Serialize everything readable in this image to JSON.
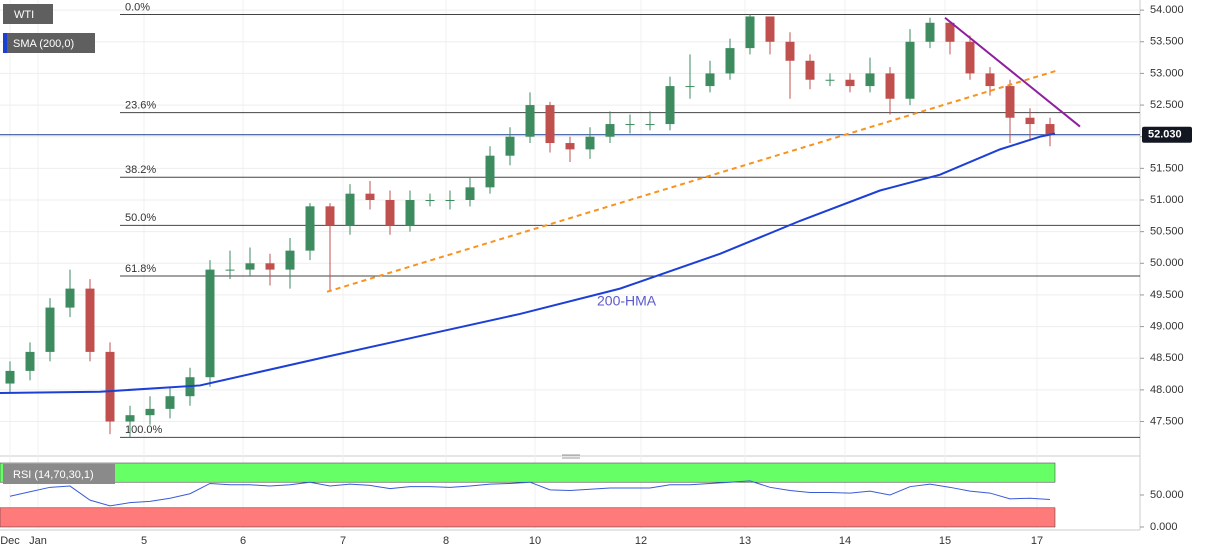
{
  "chart_data": [
    {
      "type": "candlestick",
      "xlim": [
        0,
        57
      ],
      "xticks": [
        {
          "value": 0.5,
          "label": "Dec"
        },
        {
          "value": 1.9,
          "label": "Jan"
        },
        {
          "value": 7.2,
          "label": "5"
        },
        {
          "value": 12.15,
          "label": "6"
        },
        {
          "value": 17.15,
          "label": "7"
        },
        {
          "value": 22.3,
          "label": "8"
        },
        {
          "value": 26.75,
          "label": "10"
        },
        {
          "value": 32.05,
          "label": "12"
        },
        {
          "value": 37.25,
          "label": "13"
        },
        {
          "value": 42.25,
          "label": "14"
        },
        {
          "value": 47.25,
          "label": "15"
        },
        {
          "value": 51.85,
          "label": "17"
        }
      ],
      "ylim": [
        47.05,
        54.16
      ],
      "yticks": [
        {
          "value": 47.5,
          "label": "47.500"
        },
        {
          "value": 48,
          "label": "48.000"
        },
        {
          "value": 48.5,
          "label": "48.500"
        },
        {
          "value": 49,
          "label": "49.000"
        },
        {
          "value": 49.5,
          "label": "49.500"
        },
        {
          "value": 50,
          "label": "50.000"
        },
        {
          "value": 50.5,
          "label": "50.500"
        },
        {
          "value": 51,
          "label": "51.000"
        },
        {
          "value": 51.5,
          "label": "51.500"
        },
        {
          "value": 52,
          "label": "52.000"
        },
        {
          "value": 52.5,
          "label": "52.500"
        },
        {
          "value": 53,
          "label": "53.000"
        },
        {
          "value": 53.5,
          "label": "53.500"
        },
        {
          "value": 54,
          "label": "54.000"
        }
      ],
      "grid": true,
      "series": [
        {
          "name": "WTI",
          "up_color": "#3d8b5f",
          "down_color": "#c0504d",
          "open": [
            48.1,
            48.3,
            48.6,
            49.3,
            49.6,
            48.6,
            47.5,
            47.6,
            47.7,
            47.9,
            48.2,
            49.9,
            49.9,
            50.0,
            49.9,
            50.2,
            50.9,
            50.6,
            51.1,
            51.0,
            50.6,
            51.0,
            51.0,
            51.0,
            51.2,
            51.7,
            52.0,
            52.5,
            51.9,
            51.8,
            52.0,
            52.2,
            52.2,
            52.2,
            52.8,
            52.8,
            53.0,
            53.4,
            53.9,
            53.5,
            53.2,
            52.9,
            52.9,
            52.8,
            53.0,
            52.6,
            53.5,
            53.8,
            53.5,
            53.0,
            52.8,
            52.3,
            52.2
          ],
          "high": [
            48.45,
            48.75,
            49.45,
            49.9,
            49.75,
            48.75,
            47.75,
            47.9,
            48.05,
            48.35,
            50.05,
            50.2,
            50.25,
            50.15,
            50.4,
            50.95,
            50.95,
            51.25,
            51.3,
            51.15,
            51.15,
            51.1,
            51.15,
            51.35,
            51.85,
            52.15,
            52.7,
            52.55,
            52.0,
            52.15,
            52.4,
            52.35,
            52.4,
            52.95,
            53.3,
            53.2,
            53.55,
            53.93,
            53.85,
            53.65,
            53.3,
            53.0,
            53.0,
            53.25,
            53.1,
            53.7,
            53.88,
            53.8,
            53.6,
            53.1,
            52.9,
            52.45,
            52.3
          ],
          "low": [
            47.95,
            48.15,
            48.45,
            49.15,
            48.45,
            47.3,
            47.25,
            47.45,
            47.55,
            47.75,
            48.05,
            49.75,
            49.8,
            49.65,
            49.6,
            50.05,
            49.55,
            50.45,
            50.85,
            50.45,
            50.5,
            50.9,
            50.85,
            50.9,
            51.1,
            51.55,
            51.9,
            51.75,
            51.6,
            51.65,
            51.9,
            52.05,
            52.1,
            52.1,
            52.6,
            52.7,
            52.9,
            53.3,
            53.3,
            52.6,
            52.75,
            52.8,
            52.7,
            52.7,
            52.35,
            52.5,
            53.4,
            53.3,
            52.9,
            52.65,
            51.9,
            51.95,
            51.85
          ],
          "close": [
            48.3,
            48.6,
            49.3,
            49.6,
            48.6,
            47.5,
            47.6,
            47.7,
            47.9,
            48.2,
            49.9,
            49.9,
            50.0,
            49.9,
            50.2,
            50.9,
            50.6,
            51.1,
            51.0,
            50.6,
            51.0,
            51.0,
            51.0,
            51.2,
            51.7,
            52.0,
            52.5,
            51.9,
            51.8,
            52.0,
            52.2,
            52.2,
            52.2,
            52.8,
            52.8,
            53.0,
            53.4,
            53.9,
            53.5,
            53.2,
            52.9,
            52.9,
            52.8,
            53.0,
            52.6,
            53.5,
            53.8,
            53.5,
            53.0,
            52.8,
            52.3,
            52.2,
            52.03
          ]
        },
        {
          "name": "SMA (200,0)",
          "label": "200-HMA",
          "color": "#1c3fd6",
          "x": [
            0,
            5,
            10,
            16,
            21,
            26,
            31,
            36,
            40,
            44,
            47,
            50,
            52,
            52.75
          ],
          "values": [
            47.95,
            47.97,
            48.07,
            48.5,
            48.85,
            49.2,
            49.6,
            50.15,
            50.67,
            51.15,
            51.4,
            51.8,
            52.0,
            52.05
          ]
        }
      ],
      "fib_levels": [
        {
          "label": "0.0%",
          "value": 53.93
        },
        {
          "label": "23.6%",
          "value": 52.38
        },
        {
          "label": "38.2%",
          "value": 51.36
        },
        {
          "label": "50.0%",
          "value": 50.6
        },
        {
          "label": "61.8%",
          "value": 49.8
        },
        {
          "label": "100.0%",
          "value": 47.25
        }
      ],
      "trendlines": [
        {
          "color": "#f7931e",
          "dashed": true,
          "x": [
            16.35,
            52.9
          ],
          "values": [
            49.55,
            53.05
          ]
        },
        {
          "color": "#8e1f9e",
          "dashed": false,
          "x": [
            47.25,
            54
          ],
          "values": [
            53.88,
            52.16
          ]
        }
      ],
      "last_price": {
        "value": 52.03,
        "label": "52.030"
      }
    },
    {
      "type": "line",
      "title": "RSI (14,70,30,1)",
      "ylim": [
        0,
        100
      ],
      "yticks": [
        {
          "value": 0,
          "label": "0.000"
        },
        {
          "value": 50,
          "label": "50.000"
        }
      ],
      "bands": [
        {
          "from": 70,
          "to": 100,
          "color": "#66ff66"
        },
        {
          "from": 0,
          "to": 30,
          "color": "#ff7b7b"
        }
      ],
      "color": "#3a5bd9",
      "values": [
        48,
        55,
        62,
        64,
        42,
        33,
        38,
        40,
        45,
        52,
        68,
        66,
        66,
        64,
        66,
        70,
        64,
        67,
        65,
        60,
        63,
        63,
        62,
        64,
        67,
        68,
        70,
        58,
        57,
        59,
        61,
        61,
        61,
        66,
        66,
        68,
        70,
        72,
        62,
        57,
        54,
        54,
        53,
        56,
        50,
        63,
        67,
        62,
        56,
        53,
        44,
        45,
        43
      ]
    }
  ]
}
